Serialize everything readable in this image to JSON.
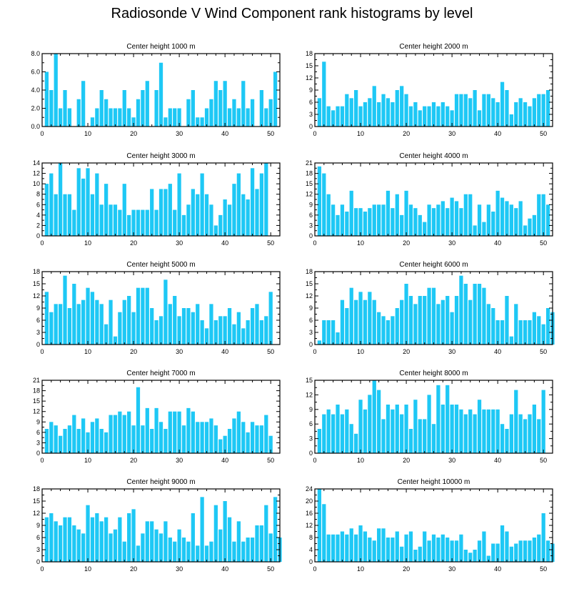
{
  "title": "Radiosonde V Wind Component rank histograms by level",
  "colors": {
    "bar": "#1ec8f5",
    "axis": "#000000",
    "background": "#ffffff"
  },
  "chart_data": [
    {
      "type": "bar",
      "title": "Center height 1000 m",
      "ylim": [
        0,
        8
      ],
      "yticks": [
        0,
        2,
        4,
        6,
        8
      ],
      "ytick_labels": [
        "0.0",
        "2.0",
        "4.0",
        "6.0",
        "8.0"
      ],
      "xlim": [
        0,
        52
      ],
      "xticks": [
        0,
        10,
        20,
        30,
        40,
        50
      ],
      "values": [
        6,
        4,
        8,
        2,
        4,
        2,
        0,
        3,
        5,
        0,
        1,
        2,
        4,
        3,
        2,
        2,
        2,
        4,
        2,
        1,
        3,
        4,
        5,
        0,
        4,
        7,
        1,
        2,
        2,
        2,
        0,
        3,
        4,
        1,
        1,
        2,
        3,
        5,
        4,
        5,
        2,
        3,
        2,
        5,
        2,
        3,
        0,
        4,
        2,
        3,
        6
      ]
    },
    {
      "type": "bar",
      "title": "Center height 2000 m",
      "ylim": [
        0,
        18
      ],
      "yticks": [
        0,
        3,
        6,
        9,
        12,
        15,
        18
      ],
      "ytick_labels": [
        "0",
        "3",
        "6",
        "9",
        "12",
        "15",
        "18"
      ],
      "xlim": [
        0,
        52
      ],
      "xticks": [
        0,
        10,
        20,
        30,
        40,
        50
      ],
      "values": [
        7,
        16,
        5,
        4,
        5,
        5,
        8,
        7,
        9,
        5,
        6,
        7,
        10,
        6,
        8,
        7,
        6,
        9,
        10,
        8,
        5,
        6,
        4,
        5,
        5,
        6,
        5,
        6,
        5,
        4,
        8,
        8,
        8,
        7,
        9,
        4,
        8,
        8,
        7,
        6,
        11,
        9,
        3,
        6,
        7,
        6,
        5,
        7,
        8,
        8,
        9
      ]
    },
    {
      "type": "bar",
      "title": "Center height 3000 m",
      "ylim": [
        0,
        14
      ],
      "yticks": [
        0,
        2,
        4,
        6,
        8,
        10,
        12,
        14
      ],
      "ytick_labels": [
        "0",
        "2",
        "4",
        "6",
        "8",
        "10",
        "12",
        "14"
      ],
      "xlim": [
        0,
        52
      ],
      "xticks": [
        0,
        10,
        20,
        30,
        40,
        50
      ],
      "values": [
        10,
        12,
        8,
        14,
        8,
        8,
        5,
        13,
        11,
        13,
        8,
        12,
        6,
        10,
        6,
        6,
        5,
        10,
        4,
        5,
        5,
        5,
        5,
        9,
        5,
        9,
        9,
        10,
        5,
        12,
        4,
        6,
        9,
        8,
        12,
        8,
        6,
        2,
        4,
        7,
        6,
        10,
        12,
        8,
        7,
        13,
        9,
        12,
        14
      ]
    },
    {
      "type": "bar",
      "title": "Center height 4000 m",
      "ylim": [
        0,
        21
      ],
      "yticks": [
        0,
        3,
        6,
        9,
        12,
        15,
        18,
        21
      ],
      "ytick_labels": [
        "0",
        "3",
        "6",
        "9",
        "12",
        "15",
        "18",
        "21"
      ],
      "xlim": [
        0,
        52
      ],
      "xticks": [
        0,
        10,
        20,
        30,
        40,
        50
      ],
      "values": [
        20,
        18,
        12,
        9,
        6,
        9,
        7,
        13,
        8,
        8,
        7,
        8,
        9,
        9,
        9,
        13,
        8,
        12,
        6,
        13,
        9,
        8,
        6,
        4,
        9,
        8,
        9,
        10,
        8,
        11,
        10,
        8,
        12,
        12,
        3,
        9,
        4,
        9,
        7,
        13,
        11,
        10,
        9,
        8,
        10,
        3,
        5,
        6,
        12,
        12,
        9
      ]
    },
    {
      "type": "bar",
      "title": "Center height 5000 m",
      "ylim": [
        0,
        18
      ],
      "yticks": [
        0,
        3,
        6,
        9,
        12,
        15,
        18
      ],
      "ytick_labels": [
        "0",
        "3",
        "6",
        "9",
        "12",
        "15",
        "18"
      ],
      "xlim": [
        0,
        52
      ],
      "xticks": [
        0,
        10,
        20,
        30,
        40,
        50
      ],
      "values": [
        13,
        8,
        10,
        10,
        17,
        9,
        15,
        10,
        11,
        14,
        13,
        11,
        10,
        5,
        11,
        2,
        8,
        11,
        12,
        8,
        14,
        14,
        14,
        9,
        6,
        7,
        16,
        10,
        12,
        7,
        9,
        9,
        8,
        10,
        6,
        4,
        10,
        6,
        7,
        7,
        9,
        5,
        8,
        4,
        6,
        9,
        10,
        6,
        7,
        13
      ]
    },
    {
      "type": "bar",
      "title": "Center height 6000 m",
      "ylim": [
        0,
        18
      ],
      "yticks": [
        0,
        3,
        6,
        9,
        12,
        15,
        18
      ],
      "ytick_labels": [
        "0",
        "3",
        "6",
        "9",
        "12",
        "15",
        "18"
      ],
      "xlim": [
        0,
        52
      ],
      "xticks": [
        0,
        10,
        20,
        30,
        40,
        50
      ],
      "values": [
        1,
        6,
        6,
        6,
        3,
        11,
        9,
        14,
        11,
        13,
        11,
        13,
        11,
        8,
        7,
        6,
        7,
        9,
        11,
        15,
        12,
        10,
        12,
        12,
        14,
        14,
        10,
        11,
        12,
        8,
        12,
        17,
        15,
        11,
        15,
        15,
        14,
        10,
        9,
        6,
        6,
        12,
        2,
        10,
        6,
        6,
        6,
        8,
        7,
        5,
        9,
        8
      ]
    },
    {
      "type": "bar",
      "title": "Center height 7000 m",
      "ylim": [
        0,
        21
      ],
      "yticks": [
        0,
        3,
        6,
        9,
        12,
        15,
        18,
        21
      ],
      "ytick_labels": [
        "0",
        "3",
        "6",
        "9",
        "12",
        "15",
        "18",
        "21"
      ],
      "xlim": [
        0,
        52
      ],
      "xticks": [
        0,
        10,
        20,
        30,
        40,
        50
      ],
      "values": [
        7,
        9,
        8,
        5,
        7,
        8,
        11,
        7,
        10,
        6,
        9,
        10,
        7,
        6,
        11,
        11,
        12,
        11,
        12,
        8,
        19,
        8,
        13,
        7,
        13,
        9,
        7,
        12,
        12,
        12,
        8,
        13,
        12,
        9,
        9,
        9,
        10,
        8,
        4,
        5,
        7,
        10,
        12,
        9,
        6,
        9,
        8,
        8,
        11,
        5
      ]
    },
    {
      "type": "bar",
      "title": "Center height 8000 m",
      "ylim": [
        0,
        15
      ],
      "yticks": [
        0,
        3,
        6,
        9,
        12,
        15
      ],
      "ytick_labels": [
        "0",
        "3",
        "6",
        "9",
        "12",
        "15"
      ],
      "xlim": [
        0,
        52
      ],
      "xticks": [
        0,
        10,
        20,
        30,
        40,
        50
      ],
      "values": [
        5,
        8,
        9,
        8,
        10,
        8,
        9,
        6,
        4,
        11,
        9,
        12,
        15,
        13,
        7,
        10,
        9,
        10,
        8,
        10,
        5,
        11,
        7,
        7,
        12,
        6,
        14,
        10,
        14,
        10,
        10,
        9,
        8,
        9,
        8,
        11,
        9,
        9,
        9,
        9,
        6,
        5,
        8,
        13,
        8,
        7,
        8,
        10,
        7,
        13
      ]
    },
    {
      "type": "bar",
      "title": "Center height 9000 m",
      "ylim": [
        0,
        18
      ],
      "yticks": [
        0,
        3,
        6,
        9,
        12,
        15,
        18
      ],
      "ytick_labels": [
        "0",
        "3",
        "6",
        "9",
        "12",
        "15",
        "18"
      ],
      "xlim": [
        0,
        52
      ],
      "xticks": [
        0,
        10,
        20,
        30,
        40,
        50
      ],
      "values": [
        11,
        12,
        10,
        9,
        11,
        11,
        9,
        8,
        7,
        14,
        11,
        12,
        10,
        11,
        7,
        8,
        11,
        5,
        12,
        13,
        4,
        7,
        10,
        10,
        8,
        7,
        10,
        6,
        5,
        8,
        6,
        5,
        12,
        4,
        16,
        4,
        5,
        14,
        8,
        15,
        11,
        5,
        10,
        5,
        6,
        6,
        9,
        9,
        14,
        7,
        16,
        6
      ]
    },
    {
      "type": "bar",
      "title": "Center height 10000 m",
      "ylim": [
        0,
        24
      ],
      "yticks": [
        0,
        4,
        8,
        12,
        16,
        20,
        24
      ],
      "ytick_labels": [
        "0",
        "4",
        "8",
        "12",
        "16",
        "20",
        "24"
      ],
      "xlim": [
        0,
        52
      ],
      "xticks": [
        0,
        10,
        20,
        30,
        40,
        50
      ],
      "values": [
        24,
        19,
        9,
        9,
        9,
        10,
        9,
        11,
        9,
        12,
        10,
        8,
        7,
        11,
        11,
        8,
        8,
        10,
        5,
        9,
        10,
        4,
        5,
        10,
        7,
        9,
        8,
        9,
        8,
        7,
        7,
        9,
        4,
        3,
        4,
        7,
        10,
        2,
        6,
        6,
        12,
        10,
        5,
        6,
        7,
        7,
        7,
        8,
        9,
        16,
        7,
        6
      ]
    }
  ]
}
